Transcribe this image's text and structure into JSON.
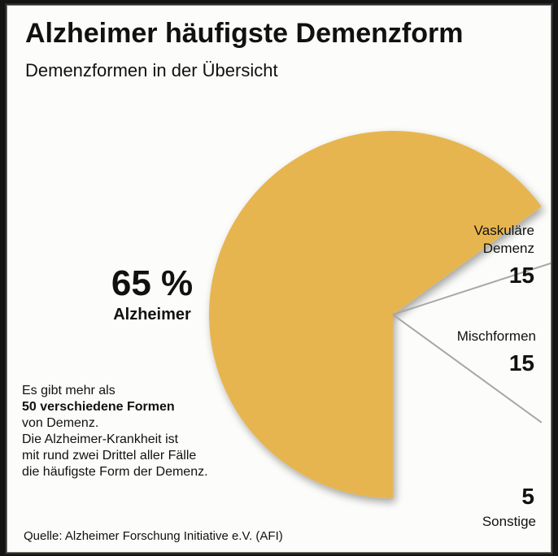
{
  "header": {
    "title": "Alzheimer häufigste Demenzform",
    "subtitle": "Demenzformen in der Übersicht"
  },
  "chart_data": {
    "type": "pie",
    "categories": [
      "Alzheimer",
      "Vaskuläre Demenz",
      "Mischformen",
      "Sonstige"
    ],
    "values": [
      65,
      15,
      15,
      5
    ],
    "unit": "%",
    "colors": {
      "alzheimer": "#e7b550",
      "others": "#fcfcfa",
      "lines": "#a7a7a7"
    }
  },
  "labels": {
    "alzheimer_value": "65 %",
    "alzheimer_name": "Alzheimer",
    "vaskulaere_line1": "Vaskuläre",
    "vaskulaere_line2": "Demenz",
    "vaskulaere_value": "15",
    "misch_name": "Mischformen",
    "misch_value": "15",
    "sonstige_value": "5",
    "sonstige_name": "Sonstige"
  },
  "note": {
    "line1": "Es gibt mehr als",
    "line2_bold": "50 verschiedene Formen",
    "line3": "von Demenz.",
    "line4": "Die Alzheimer-Krankheit ist",
    "line5": "mit rund zwei Drittel aller Fälle",
    "line6": "die häufigste Form der Demenz."
  },
  "footer": {
    "source": "Quelle: Alzheimer Forschung Initiative e.V. (AFI)"
  }
}
